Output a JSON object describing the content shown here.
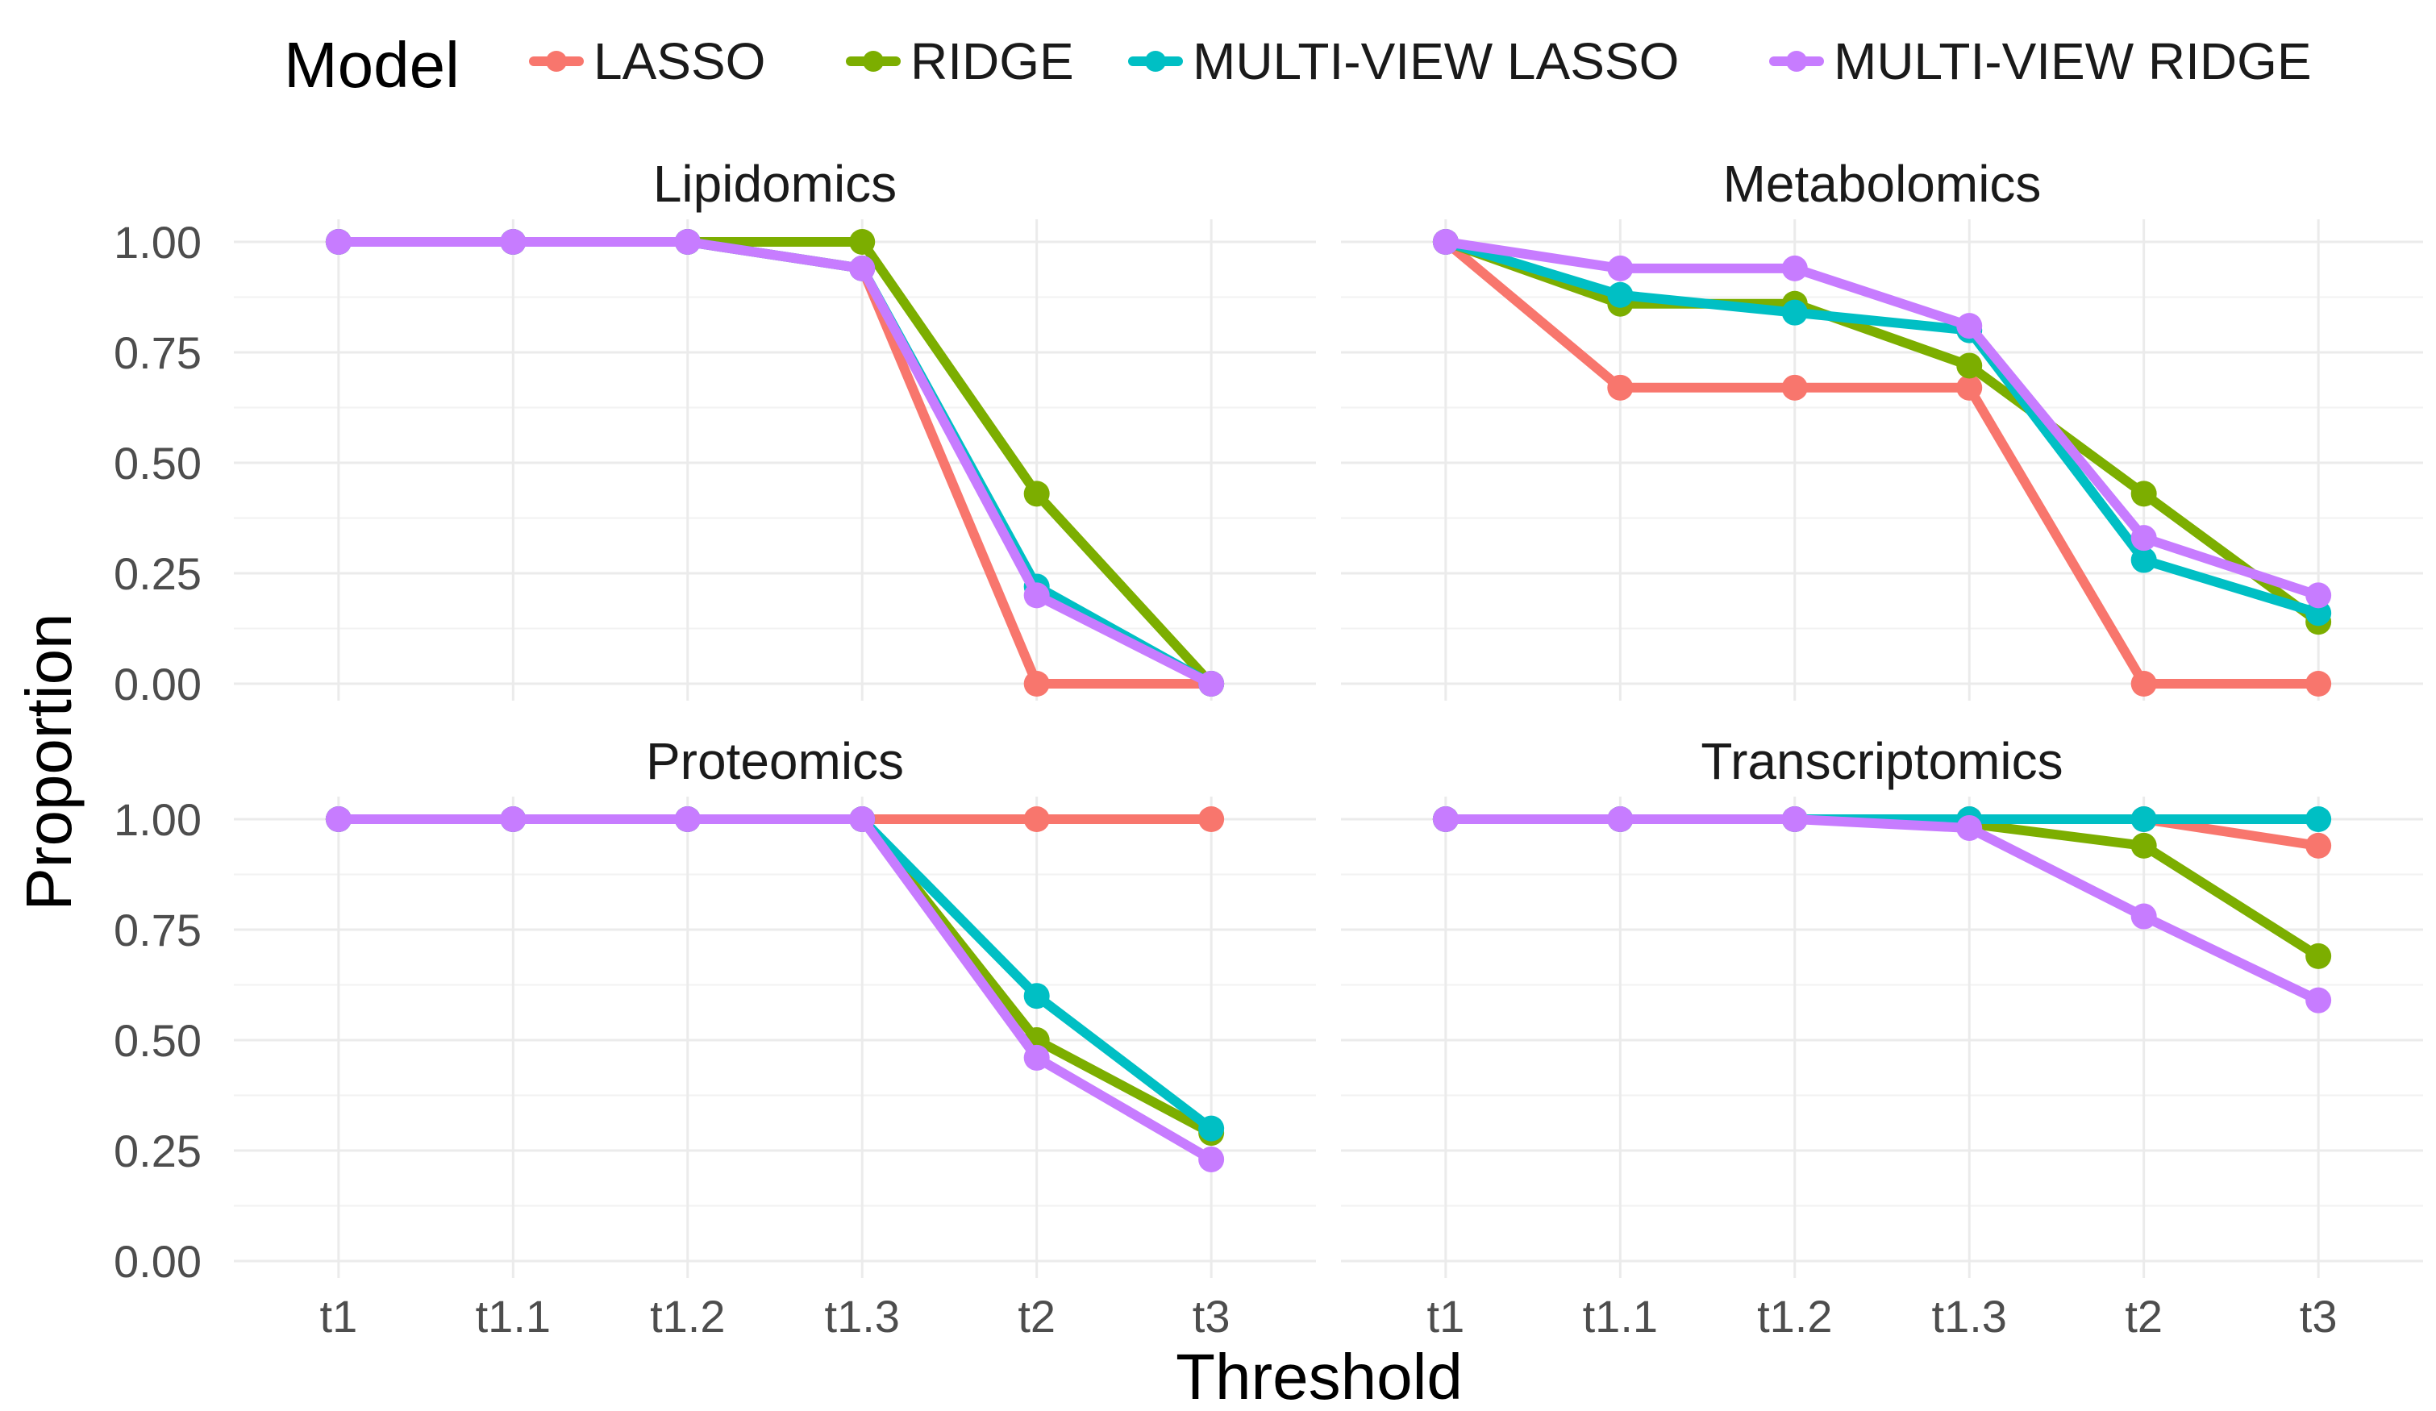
{
  "chart_data": {
    "type": "line",
    "legend": {
      "title": "Model",
      "position": "top"
    },
    "xlabel": "Threshold",
    "ylabel": "Proportion",
    "ylim": [
      0,
      1
    ],
    "yticks": [
      "0.00",
      "0.25",
      "0.50",
      "0.75",
      "1.00"
    ],
    "categories": [
      "t1",
      "t1.1",
      "t1.2",
      "t1.3",
      "t2",
      "t3"
    ],
    "series_meta": [
      {
        "name": "LASSO",
        "color": "#F8766D"
      },
      {
        "name": "RIDGE",
        "color": "#7CAE00"
      },
      {
        "name": "MULTI-VIEW LASSO",
        "color": "#00BFC4"
      },
      {
        "name": "MULTI-VIEW RIDGE",
        "color": "#C77CFF"
      }
    ],
    "panels": [
      {
        "title": "Lipidomics",
        "series": [
          {
            "name": "LASSO",
            "values": [
              1.0,
              1.0,
              1.0,
              0.94,
              0.0,
              0.0
            ]
          },
          {
            "name": "RIDGE",
            "values": [
              1.0,
              1.0,
              1.0,
              1.0,
              0.43,
              0.0
            ]
          },
          {
            "name": "MULTI-VIEW LASSO",
            "values": [
              1.0,
              1.0,
              1.0,
              0.94,
              0.22,
              0.0
            ]
          },
          {
            "name": "MULTI-VIEW RIDGE",
            "values": [
              1.0,
              1.0,
              1.0,
              0.94,
              0.2,
              0.0
            ]
          }
        ]
      },
      {
        "title": "Metabolomics",
        "series": [
          {
            "name": "LASSO",
            "values": [
              1.0,
              0.67,
              0.67,
              0.67,
              0.0,
              0.0
            ]
          },
          {
            "name": "RIDGE",
            "values": [
              1.0,
              0.86,
              0.86,
              0.72,
              0.43,
              0.14
            ]
          },
          {
            "name": "MULTI-VIEW LASSO",
            "values": [
              1.0,
              0.88,
              0.84,
              0.8,
              0.28,
              0.16
            ]
          },
          {
            "name": "MULTI-VIEW RIDGE",
            "values": [
              1.0,
              0.94,
              0.94,
              0.81,
              0.33,
              0.2
            ]
          }
        ]
      },
      {
        "title": "Proteomics",
        "series": [
          {
            "name": "LASSO",
            "values": [
              1.0,
              1.0,
              1.0,
              1.0,
              1.0,
              1.0
            ]
          },
          {
            "name": "RIDGE",
            "values": [
              1.0,
              1.0,
              1.0,
              1.0,
              0.5,
              0.29
            ]
          },
          {
            "name": "MULTI-VIEW LASSO",
            "values": [
              1.0,
              1.0,
              1.0,
              1.0,
              0.6,
              0.3
            ]
          },
          {
            "name": "MULTI-VIEW RIDGE",
            "values": [
              1.0,
              1.0,
              1.0,
              1.0,
              0.46,
              0.23
            ]
          }
        ]
      },
      {
        "title": "Transcriptomics",
        "series": [
          {
            "name": "LASSO",
            "values": [
              1.0,
              1.0,
              1.0,
              1.0,
              1.0,
              0.94
            ]
          },
          {
            "name": "RIDGE",
            "values": [
              1.0,
              1.0,
              1.0,
              0.99,
              0.94,
              0.69
            ]
          },
          {
            "name": "MULTI-VIEW LASSO",
            "values": [
              1.0,
              1.0,
              1.0,
              1.0,
              1.0,
              1.0
            ]
          },
          {
            "name": "MULTI-VIEW RIDGE",
            "values": [
              1.0,
              1.0,
              1.0,
              0.98,
              0.78,
              0.59
            ]
          }
        ]
      }
    ]
  }
}
